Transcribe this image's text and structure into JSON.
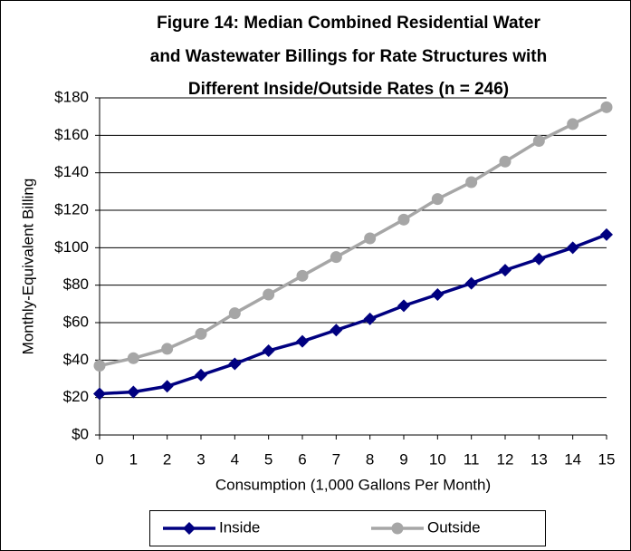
{
  "chart_data": {
    "type": "line",
    "title": [
      "Figure 14: Median Combined Residential Water",
      "and Wastewater Billings for Rate Structures with",
      "Different Inside/Outside Rates (n = 246)"
    ],
    "x_label": "Consumption (1,000 Gallons Per Month)",
    "y_label": "Monthly-Equivalent Billing",
    "x": [
      0,
      1,
      2,
      3,
      4,
      5,
      6,
      7,
      8,
      9,
      10,
      11,
      12,
      13,
      14,
      15
    ],
    "xlim": [
      0,
      15
    ],
    "xticks": [
      0,
      1,
      2,
      3,
      4,
      5,
      6,
      7,
      8,
      9,
      10,
      11,
      12,
      13,
      14,
      15
    ],
    "ylim": [
      0,
      180
    ],
    "yticks": [
      {
        "value": 0,
        "label": "$0"
      },
      {
        "value": 20,
        "label": "$20"
      },
      {
        "value": 40,
        "label": "$40"
      },
      {
        "value": 60,
        "label": "$60"
      },
      {
        "value": 80,
        "label": "$80"
      },
      {
        "value": 100,
        "label": "$100"
      },
      {
        "value": 120,
        "label": "$120"
      },
      {
        "value": 140,
        "label": "$140"
      },
      {
        "value": 160,
        "label": "$160"
      },
      {
        "value": 180,
        "label": "$180"
      }
    ],
    "grid": true,
    "legend": "bottom",
    "series": [
      {
        "name": "Inside",
        "color": "#000080",
        "marker": "diamond",
        "values": [
          22,
          23,
          26,
          32,
          38,
          45,
          50,
          56,
          62,
          69,
          75,
          81,
          88,
          94,
          100,
          107
        ]
      },
      {
        "name": "Outside",
        "color": "#a6a6a6",
        "marker": "circle",
        "values": [
          37,
          41,
          46,
          54,
          65,
          75,
          85,
          95,
          105,
          115,
          126,
          135,
          146,
          157,
          166,
          175
        ]
      }
    ]
  }
}
